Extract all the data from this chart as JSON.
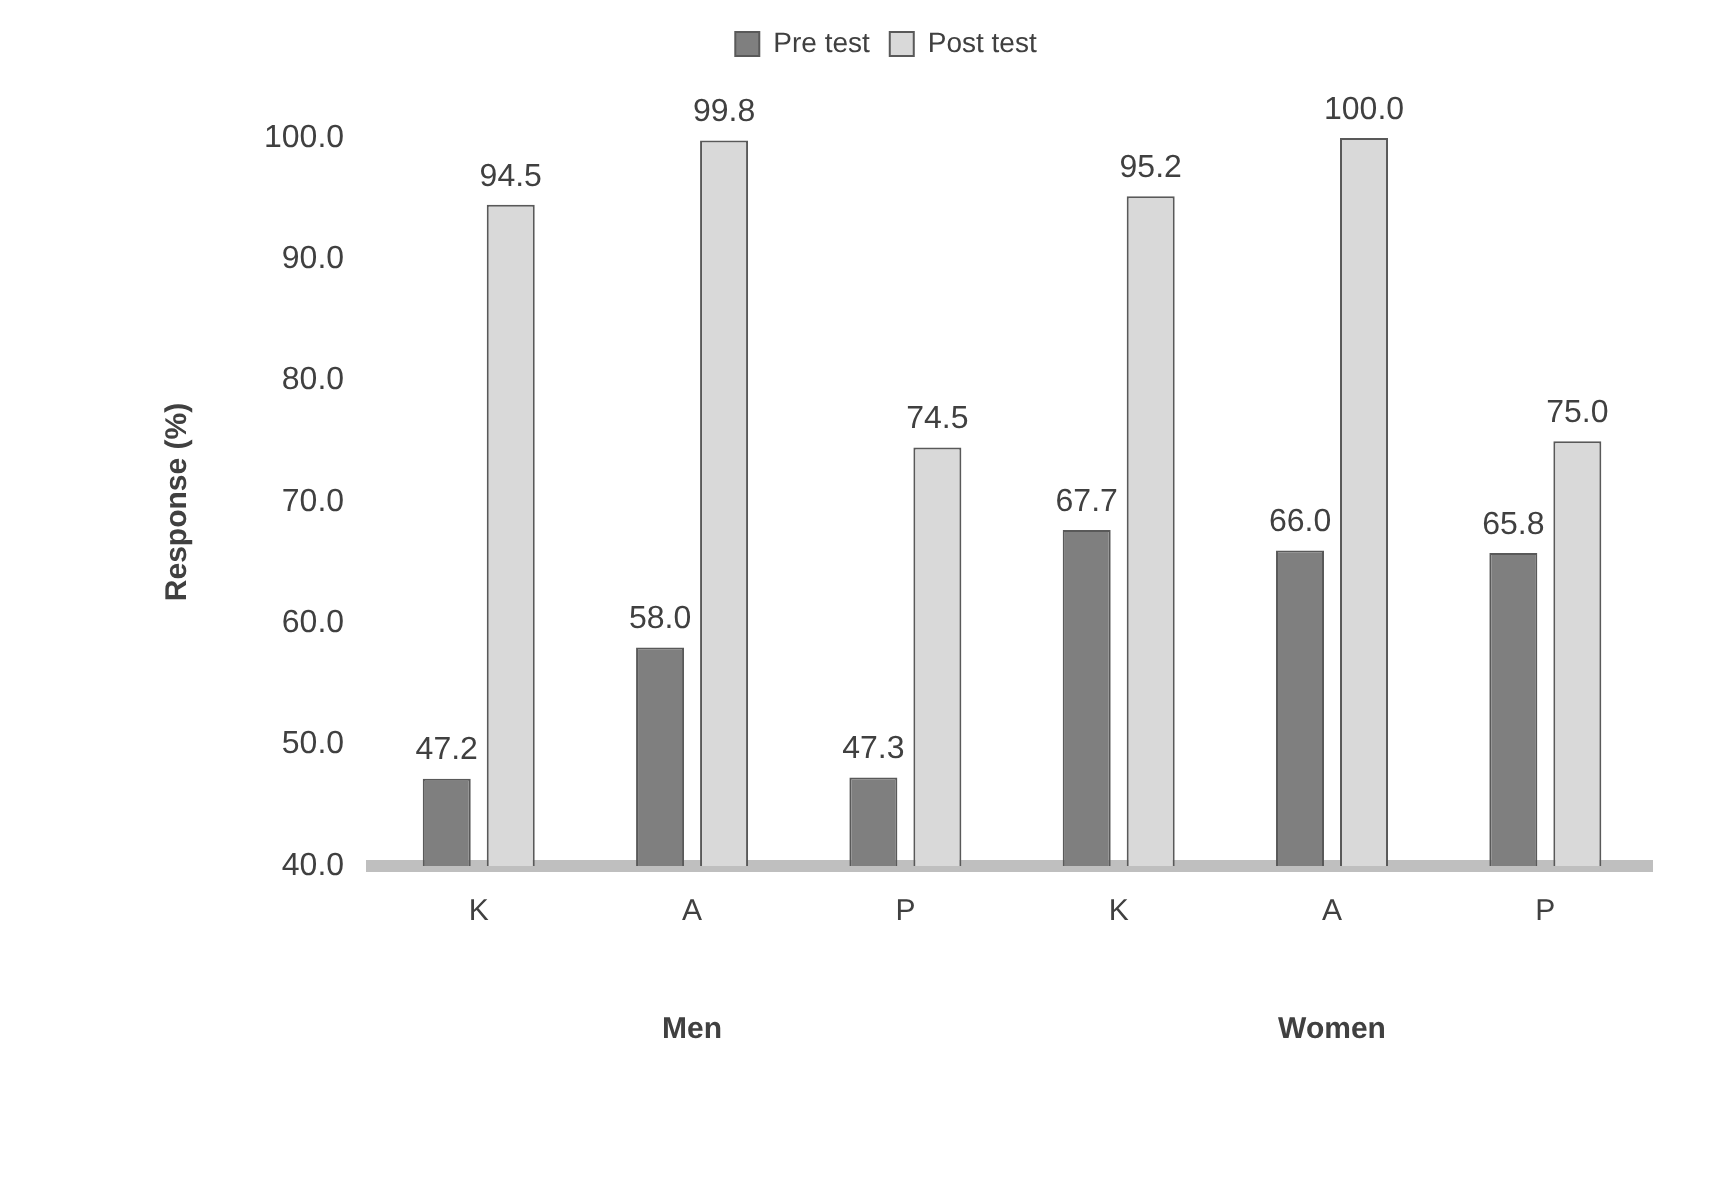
{
  "chart_data": {
    "type": "bar",
    "ylabel": "Response (%)",
    "categories": [
      "K",
      "A",
      "P",
      "K",
      "A",
      "P"
    ],
    "series": [
      {
        "name": "Pre test",
        "color": "#7f7f7f",
        "values": [
          47.2,
          58.0,
          47.3,
          67.7,
          66.0,
          65.8
        ],
        "value_labels": [
          "47.2",
          "58.0",
          "47.3",
          "67.7",
          "66.0",
          "65.8"
        ]
      },
      {
        "name": "Post test",
        "color": "#d9d9d9",
        "values": [
          94.5,
          99.8,
          74.5,
          95.2,
          100.0,
          75.0
        ],
        "value_labels": [
          "94.5",
          "99.8",
          "74.5",
          "95.2",
          "100.0",
          "75.0"
        ]
      }
    ],
    "ylim": [
      40,
      100
    ],
    "yticks": [
      {
        "value": 40,
        "label": "40.0"
      },
      {
        "value": 50,
        "label": "50.0"
      },
      {
        "value": 60,
        "label": "60.0"
      },
      {
        "value": 70,
        "label": "70.0"
      },
      {
        "value": 80,
        "label": "80.0"
      },
      {
        "value": 90,
        "label": "90.0"
      },
      {
        "value": 100,
        "label": "100.0"
      }
    ],
    "annotations": [
      "Men",
      "Women"
    ],
    "grid": false,
    "legend": "top"
  }
}
